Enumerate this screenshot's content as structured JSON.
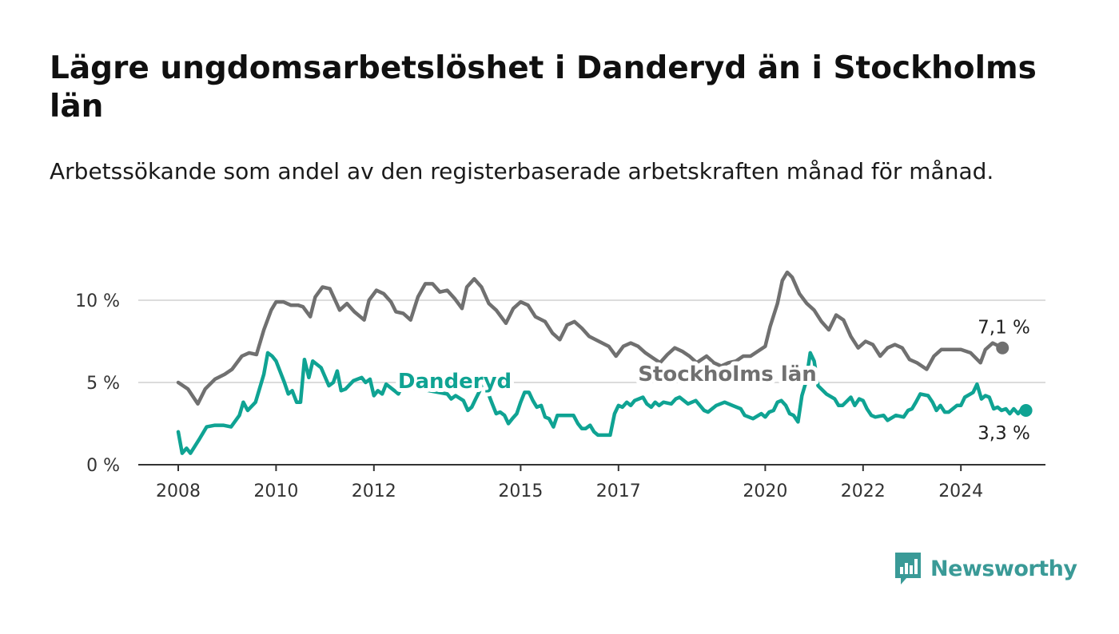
{
  "title": "Lägre ungdomsarbetslöshet i Danderyd än i Stockholms län",
  "subtitle": "Arbetssökande som andel av den registerbaserade arbetskraften månad för månad.",
  "logo": {
    "text": "Newsworthy",
    "icon": "newsworthy-bar-chart-logo-icon",
    "color": "#3a9a97"
  },
  "chart_data": {
    "type": "line",
    "title": "Lägre ungdomsarbetslöshet i Danderyd än i Stockholms län",
    "subtitle": "Arbetssökande som andel av den registerbaserade arbetskraften månad för månad.",
    "xlabel": "",
    "ylabel": "",
    "xlim": [
      2008.0,
      2025.4
    ],
    "ylim": [
      0,
      12
    ],
    "x_ticks": [
      2008,
      2010,
      2012,
      2015,
      2017,
      2020,
      2022,
      2024
    ],
    "x_tick_labels": [
      "2008",
      "2010",
      "2012",
      "2015",
      "2017",
      "2020",
      "2022",
      "2024"
    ],
    "y_ticks": [
      0,
      5,
      10
    ],
    "y_tick_labels": [
      "0 %",
      "5 %",
      "10 %"
    ],
    "grid": "horizontal",
    "legend": "direct labels on lines",
    "series": [
      {
        "name": "Stockholms län",
        "color": "#707070",
        "end_label": "7,1 %",
        "points": [
          [
            2008.0,
            5.0
          ],
          [
            2008.2,
            4.6
          ],
          [
            2008.4,
            3.7
          ],
          [
            2008.55,
            4.6
          ],
          [
            2008.75,
            5.2
          ],
          [
            2008.95,
            5.5
          ],
          [
            2009.1,
            5.8
          ],
          [
            2009.3,
            6.6
          ],
          [
            2009.45,
            6.8
          ],
          [
            2009.6,
            6.7
          ],
          [
            2009.75,
            8.2
          ],
          [
            2009.9,
            9.4
          ],
          [
            2010.0,
            9.9
          ],
          [
            2010.15,
            9.9
          ],
          [
            2010.3,
            9.7
          ],
          [
            2010.45,
            9.7
          ],
          [
            2010.55,
            9.6
          ],
          [
            2010.7,
            9.0
          ],
          [
            2010.8,
            10.2
          ],
          [
            2010.95,
            10.8
          ],
          [
            2011.1,
            10.7
          ],
          [
            2011.3,
            9.4
          ],
          [
            2011.45,
            9.8
          ],
          [
            2011.6,
            9.3
          ],
          [
            2011.8,
            8.8
          ],
          [
            2011.9,
            10.0
          ],
          [
            2012.05,
            10.6
          ],
          [
            2012.2,
            10.4
          ],
          [
            2012.35,
            9.9
          ],
          [
            2012.45,
            9.3
          ],
          [
            2012.6,
            9.2
          ],
          [
            2012.75,
            8.8
          ],
          [
            2012.9,
            10.2
          ],
          [
            2013.05,
            11.0
          ],
          [
            2013.2,
            11.0
          ],
          [
            2013.35,
            10.5
          ],
          [
            2013.5,
            10.6
          ],
          [
            2013.65,
            10.1
          ],
          [
            2013.8,
            9.5
          ],
          [
            2013.9,
            10.8
          ],
          [
            2014.05,
            11.3
          ],
          [
            2014.2,
            10.8
          ],
          [
            2014.35,
            9.8
          ],
          [
            2014.5,
            9.4
          ],
          [
            2014.7,
            8.6
          ],
          [
            2014.85,
            9.5
          ],
          [
            2015.0,
            9.9
          ],
          [
            2015.15,
            9.7
          ],
          [
            2015.3,
            9.0
          ],
          [
            2015.5,
            8.7
          ],
          [
            2015.65,
            8.0
          ],
          [
            2015.8,
            7.6
          ],
          [
            2015.95,
            8.5
          ],
          [
            2016.1,
            8.7
          ],
          [
            2016.25,
            8.3
          ],
          [
            2016.4,
            7.8
          ],
          [
            2016.6,
            7.5
          ],
          [
            2016.8,
            7.2
          ],
          [
            2016.95,
            6.6
          ],
          [
            2017.1,
            7.2
          ],
          [
            2017.25,
            7.4
          ],
          [
            2017.4,
            7.2
          ],
          [
            2017.55,
            6.8
          ],
          [
            2017.7,
            6.5
          ],
          [
            2017.85,
            6.2
          ],
          [
            2018.0,
            6.7
          ],
          [
            2018.15,
            7.1
          ],
          [
            2018.3,
            6.9
          ],
          [
            2018.45,
            6.6
          ],
          [
            2018.6,
            6.2
          ],
          [
            2018.8,
            6.6
          ],
          [
            2018.95,
            6.2
          ],
          [
            2019.1,
            6.0
          ],
          [
            2019.25,
            6.2
          ],
          [
            2019.4,
            6.3
          ],
          [
            2019.55,
            6.6
          ],
          [
            2019.7,
            6.6
          ],
          [
            2019.85,
            6.9
          ],
          [
            2020.0,
            7.2
          ],
          [
            2020.1,
            8.4
          ],
          [
            2020.25,
            9.8
          ],
          [
            2020.35,
            11.2
          ],
          [
            2020.45,
            11.7
          ],
          [
            2020.55,
            11.4
          ],
          [
            2020.7,
            10.4
          ],
          [
            2020.85,
            9.8
          ],
          [
            2021.0,
            9.4
          ],
          [
            2021.15,
            8.7
          ],
          [
            2021.3,
            8.2
          ],
          [
            2021.45,
            9.1
          ],
          [
            2021.6,
            8.8
          ],
          [
            2021.75,
            7.8
          ],
          [
            2021.9,
            7.1
          ],
          [
            2022.05,
            7.5
          ],
          [
            2022.2,
            7.3
          ],
          [
            2022.35,
            6.6
          ],
          [
            2022.5,
            7.1
          ],
          [
            2022.65,
            7.3
          ],
          [
            2022.8,
            7.1
          ],
          [
            2022.95,
            6.4
          ],
          [
            2023.1,
            6.2
          ],
          [
            2023.3,
            5.8
          ],
          [
            2023.45,
            6.6
          ],
          [
            2023.6,
            7.0
          ],
          [
            2023.8,
            7.0
          ],
          [
            2024.0,
            7.0
          ],
          [
            2024.2,
            6.8
          ],
          [
            2024.4,
            6.2
          ],
          [
            2024.5,
            7.0
          ],
          [
            2024.65,
            7.4
          ],
          [
            2024.85,
            7.1
          ]
        ]
      },
      {
        "name": "Danderyd",
        "color": "#0fa393",
        "end_label": "3,3 %",
        "points": [
          [
            2008.0,
            2.0
          ],
          [
            2008.08,
            0.7
          ],
          [
            2008.17,
            1.0
          ],
          [
            2008.25,
            0.7
          ],
          [
            2008.42,
            1.5
          ],
          [
            2008.58,
            2.3
          ],
          [
            2008.75,
            2.4
          ],
          [
            2008.92,
            2.4
          ],
          [
            2009.08,
            2.3
          ],
          [
            2009.25,
            3.0
          ],
          [
            2009.33,
            3.8
          ],
          [
            2009.42,
            3.3
          ],
          [
            2009.58,
            3.8
          ],
          [
            2009.75,
            5.5
          ],
          [
            2009.83,
            6.8
          ],
          [
            2009.92,
            6.6
          ],
          [
            2010.0,
            6.3
          ],
          [
            2010.17,
            5.0
          ],
          [
            2010.25,
            4.3
          ],
          [
            2010.33,
            4.5
          ],
          [
            2010.42,
            3.8
          ],
          [
            2010.5,
            3.8
          ],
          [
            2010.58,
            6.4
          ],
          [
            2010.67,
            5.3
          ],
          [
            2010.75,
            6.3
          ],
          [
            2010.92,
            5.9
          ],
          [
            2011.08,
            4.8
          ],
          [
            2011.17,
            5.0
          ],
          [
            2011.25,
            5.7
          ],
          [
            2011.33,
            4.5
          ],
          [
            2011.42,
            4.6
          ],
          [
            2011.58,
            5.1
          ],
          [
            2011.75,
            5.3
          ],
          [
            2011.83,
            5.0
          ],
          [
            2011.92,
            5.2
          ],
          [
            2012.0,
            4.2
          ],
          [
            2012.08,
            4.5
          ],
          [
            2012.17,
            4.3
          ],
          [
            2012.25,
            4.9
          ],
          [
            2012.42,
            4.5
          ],
          [
            2012.5,
            4.3
          ],
          [
            2012.58,
            4.8
          ],
          [
            2013.5,
            4.3
          ],
          [
            2013.58,
            4.0
          ],
          [
            2013.67,
            4.2
          ],
          [
            2013.83,
            3.9
          ],
          [
            2013.92,
            3.3
          ],
          [
            2014.0,
            3.5
          ],
          [
            2014.08,
            4.0
          ],
          [
            2014.25,
            5.0
          ],
          [
            2014.42,
            3.7
          ],
          [
            2014.5,
            3.1
          ],
          [
            2014.58,
            3.2
          ],
          [
            2014.67,
            3.0
          ],
          [
            2014.75,
            2.5
          ],
          [
            2014.83,
            2.8
          ],
          [
            2014.92,
            3.1
          ],
          [
            2015.0,
            3.8
          ],
          [
            2015.08,
            4.4
          ],
          [
            2015.17,
            4.4
          ],
          [
            2015.25,
            3.9
          ],
          [
            2015.33,
            3.5
          ],
          [
            2015.42,
            3.6
          ],
          [
            2015.5,
            2.9
          ],
          [
            2015.58,
            2.8
          ],
          [
            2015.67,
            2.3
          ],
          [
            2015.75,
            3.0
          ],
          [
            2016.08,
            3.0
          ],
          [
            2016.17,
            2.5
          ],
          [
            2016.25,
            2.2
          ],
          [
            2016.33,
            2.2
          ],
          [
            2016.42,
            2.4
          ],
          [
            2016.5,
            2.0
          ],
          [
            2016.58,
            1.8
          ],
          [
            2016.83,
            1.8
          ],
          [
            2016.92,
            3.1
          ],
          [
            2017.0,
            3.6
          ],
          [
            2017.08,
            3.5
          ],
          [
            2017.17,
            3.8
          ],
          [
            2017.25,
            3.6
          ],
          [
            2017.33,
            3.9
          ],
          [
            2017.5,
            4.1
          ],
          [
            2017.58,
            3.7
          ],
          [
            2017.67,
            3.5
          ],
          [
            2017.75,
            3.8
          ],
          [
            2017.83,
            3.6
          ],
          [
            2017.92,
            3.8
          ],
          [
            2018.08,
            3.7
          ],
          [
            2018.17,
            4.0
          ],
          [
            2018.25,
            4.1
          ],
          [
            2018.42,
            3.7
          ],
          [
            2018.58,
            3.9
          ],
          [
            2018.75,
            3.3
          ],
          [
            2018.83,
            3.2
          ],
          [
            2019.0,
            3.6
          ],
          [
            2019.17,
            3.8
          ],
          [
            2019.33,
            3.6
          ],
          [
            2019.5,
            3.4
          ],
          [
            2019.58,
            3.0
          ],
          [
            2019.75,
            2.8
          ],
          [
            2019.92,
            3.1
          ],
          [
            2020.0,
            2.9
          ],
          [
            2020.08,
            3.2
          ],
          [
            2020.17,
            3.3
          ],
          [
            2020.25,
            3.8
          ],
          [
            2020.33,
            3.9
          ],
          [
            2020.42,
            3.6
          ],
          [
            2020.5,
            3.1
          ],
          [
            2020.58,
            3.0
          ],
          [
            2020.67,
            2.6
          ],
          [
            2020.75,
            4.2
          ],
          [
            2020.83,
            5.0
          ],
          [
            2020.92,
            6.8
          ],
          [
            2021.0,
            6.3
          ],
          [
            2021.08,
            4.8
          ],
          [
            2021.25,
            4.3
          ],
          [
            2021.42,
            4.0
          ],
          [
            2021.5,
            3.6
          ],
          [
            2021.58,
            3.6
          ],
          [
            2021.75,
            4.1
          ],
          [
            2021.83,
            3.6
          ],
          [
            2021.92,
            4.0
          ],
          [
            2022.0,
            3.9
          ],
          [
            2022.08,
            3.4
          ],
          [
            2022.17,
            3.0
          ],
          [
            2022.25,
            2.9
          ],
          [
            2022.42,
            3.0
          ],
          [
            2022.5,
            2.7
          ],
          [
            2022.67,
            3.0
          ],
          [
            2022.83,
            2.9
          ],
          [
            2022.92,
            3.3
          ],
          [
            2023.0,
            3.4
          ],
          [
            2023.08,
            3.8
          ],
          [
            2023.17,
            4.3
          ],
          [
            2023.33,
            4.2
          ],
          [
            2023.42,
            3.8
          ],
          [
            2023.5,
            3.3
          ],
          [
            2023.58,
            3.6
          ],
          [
            2023.67,
            3.2
          ],
          [
            2023.75,
            3.2
          ],
          [
            2023.92,
            3.6
          ],
          [
            2024.0,
            3.6
          ],
          [
            2024.08,
            4.1
          ],
          [
            2024.25,
            4.4
          ],
          [
            2024.33,
            4.9
          ],
          [
            2024.42,
            4.0
          ],
          [
            2024.5,
            4.2
          ],
          [
            2024.58,
            4.1
          ],
          [
            2024.67,
            3.4
          ],
          [
            2024.75,
            3.5
          ],
          [
            2024.83,
            3.3
          ],
          [
            2024.92,
            3.4
          ],
          [
            2025.0,
            3.1
          ],
          [
            2025.08,
            3.4
          ],
          [
            2025.17,
            3.1
          ],
          [
            2025.25,
            3.4
          ],
          [
            2025.33,
            3.3
          ]
        ]
      }
    ]
  }
}
